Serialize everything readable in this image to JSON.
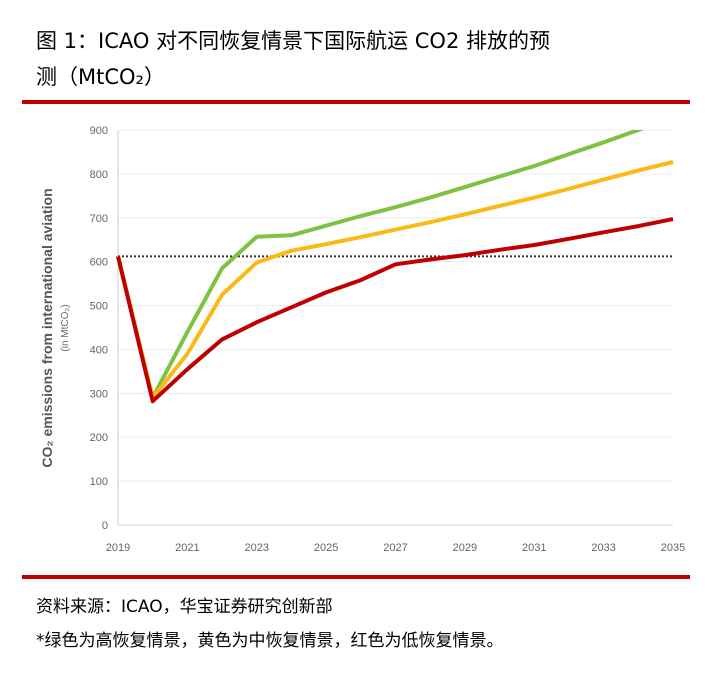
{
  "header": {
    "title_line1": "图 1：ICAO 对不同恢复情景下国际航运 CO2 排放的预",
    "title_line2": "测（MtCO₂）",
    "rule_color": "#c00000"
  },
  "footer": {
    "source": "资料来源：ICAO，华宝证券研究创新部",
    "note": "*绿色为高恢复情景，黄色为中恢复情景，红色为低恢复情景。"
  },
  "chart_data": {
    "type": "line",
    "title": "",
    "ylabel": "CO₂ emissions from international aviation",
    "ylabel_unit": "(in MtCO₂)",
    "xlabel": "",
    "xlim": [
      2019,
      2035
    ],
    "ylim": [
      0,
      900
    ],
    "x_ticks": [
      "2019",
      "2021",
      "2023",
      "2025",
      "2027",
      "2029",
      "2031",
      "2033",
      "2035"
    ],
    "y_ticks": [
      "0",
      "100",
      "200",
      "300",
      "400",
      "500",
      "600",
      "700",
      "800",
      "900"
    ],
    "grid": "horizontal",
    "x": [
      2019,
      2020,
      2021,
      2022,
      2023,
      2024,
      2025,
      2026,
      2027,
      2028,
      2029,
      2030,
      2031,
      2032,
      2033,
      2034,
      2035
    ],
    "series": [
      {
        "color": "#7dc242",
        "values": [
          612,
          290,
          440,
          585,
          657,
          660,
          682,
          704,
          724,
          746,
          770,
          794,
          818,
          845,
          872,
          900,
          928
        ]
      },
      {
        "color": "#fbb917",
        "values": [
          612,
          290,
          390,
          525,
          598,
          625,
          640,
          656,
          673,
          690,
          708,
          727,
          746,
          766,
          787,
          808,
          827
        ]
      },
      {
        "color": "#c00000",
        "values": [
          612,
          282,
          355,
          423,
          462,
          496,
          530,
          558,
          594,
          605,
          615,
          627,
          638,
          652,
          667,
          681,
          697
        ]
      }
    ],
    "reference_line": {
      "value": 612,
      "style": "dotted",
      "color": "#333333"
    }
  }
}
